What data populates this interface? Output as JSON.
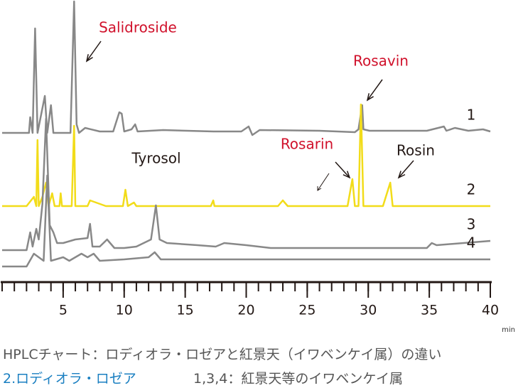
{
  "chart_data": {
    "type": "line",
    "xlabel": "min",
    "xlim": [
      0,
      40
    ],
    "xticks": [
      5,
      10,
      15,
      20,
      25,
      30,
      35,
      40
    ],
    "xminorticks": [
      0,
      1,
      2,
      3,
      4,
      5,
      6,
      7,
      8,
      9,
      10,
      11,
      12,
      13,
      14,
      15,
      16,
      17,
      18,
      19,
      20,
      21,
      22,
      23,
      24,
      25,
      26,
      27,
      28,
      29,
      30,
      31,
      32,
      33,
      34,
      35,
      36,
      37,
      38,
      39,
      40
    ],
    "ylim": [
      0,
      400
    ],
    "series": [
      {
        "name": "1",
        "color": "#888888",
        "x": [
          0,
          2.2,
          2.3,
          2.5,
          2.7,
          2.9,
          3.5,
          3.7,
          4.0,
          4.2,
          5.6,
          5.9,
          6.1,
          6.3,
          6.8,
          8.0,
          9.1,
          9.6,
          9.8,
          10.0,
          10.6,
          10.9,
          11.1,
          13.2,
          17.3,
          19.6,
          20.2,
          20.5,
          21.1,
          26.0,
          28.9,
          29.2,
          29.5,
          29.6,
          30.1,
          34.8,
          36.2,
          36.4,
          37.1,
          38.2,
          39.4,
          40
        ],
        "values": [
          210,
          210,
          232,
          210,
          357,
          210,
          262,
          210,
          249,
          210,
          210,
          395,
          222,
          210,
          217,
          212,
          212,
          239,
          237,
          212,
          215,
          222,
          212,
          214,
          212,
          212,
          219,
          207,
          214,
          213,
          211,
          215,
          249,
          215,
          213,
          213,
          219,
          213,
          217,
          213,
          215,
          212
        ]
      },
      {
        "name": "2",
        "color": "#f2dc1a",
        "x": [
          0,
          2.0,
          2.6,
          2.8,
          2.9,
          3.0,
          3.3,
          3.6,
          3.8,
          4.1,
          4.3,
          4.7,
          4.8,
          4.9,
          5.7,
          5.9,
          6.0,
          7.0,
          7.2,
          8.5,
          9.9,
          10.1,
          10.3,
          10.8,
          11.0,
          17.1,
          17.3,
          17.4,
          22.6,
          23.0,
          23.4,
          28.3,
          28.7,
          28.9,
          29.2,
          29.4,
          29.6,
          31.2,
          31.8,
          32.0,
          40
        ],
        "values": [
          107,
          107,
          120,
          107,
          200,
          107,
          120,
          140,
          107,
          125,
          107,
          107,
          125,
          107,
          107,
          220,
          107,
          107,
          115,
          107,
          107,
          130,
          107,
          112,
          107,
          107,
          115,
          107,
          107,
          115,
          107,
          107,
          145,
          107,
          107,
          250,
          107,
          107,
          140,
          107,
          107
        ]
      },
      {
        "name": "3",
        "color": "#888888",
        "x": [
          0,
          2.0,
          2.3,
          2.5,
          2.8,
          3.0,
          3.3,
          3.6,
          3.9,
          4.2,
          4.5,
          5.0,
          6.0,
          7.0,
          7.2,
          7.4,
          8.0,
          8.6,
          9.2,
          10.0,
          11.0,
          12.2,
          12.6,
          12.9,
          13.5,
          16.0,
          17.5,
          18.2,
          20.0,
          22.0,
          23.2,
          26.0,
          28.0,
          34.8,
          35.2,
          35.6,
          40
        ],
        "values": [
          45,
          45,
          70,
          50,
          75,
          60,
          110,
          230,
          80,
          70,
          55,
          55,
          60,
          62,
          82,
          50,
          50,
          60,
          48,
          48,
          50,
          60,
          108,
          60,
          55,
          52,
          50,
          55,
          52,
          48,
          48,
          48,
          48,
          48,
          55,
          52,
          58
        ]
      },
      {
        "name": "4",
        "color": "#888888",
        "x": [
          0,
          2.0,
          2.6,
          3.0,
          3.4,
          3.7,
          4.0,
          5.0,
          5.5,
          6.5,
          7.0,
          7.5,
          8.0,
          10.0,
          12.0,
          12.5,
          13.0,
          20,
          40
        ],
        "values": [
          22,
          22,
          40,
          35,
          30,
          150,
          30,
          35,
          30,
          40,
          35,
          40,
          30,
          32,
          35,
          42,
          32,
          32,
          32
        ]
      }
    ],
    "annotations": [
      {
        "text": "Salidroside",
        "color": "#d0112b"
      },
      {
        "text": "Tyrosol",
        "color": "#231815"
      },
      {
        "text": "Rosarin",
        "color": "#d0112b"
      },
      {
        "text": "Rosavin",
        "color": "#d0112b"
      },
      {
        "text": "Rosin",
        "color": "#231815"
      }
    ]
  },
  "caption": {
    "line1": "HPLCチャート：ロディオラ・ロゼアと紅景天（イワベンケイ属）の違い",
    "line2a": "2.ロディオラ・ロゼア",
    "line2b": "1,3,4：紅景天等のイワベンケイ属"
  }
}
